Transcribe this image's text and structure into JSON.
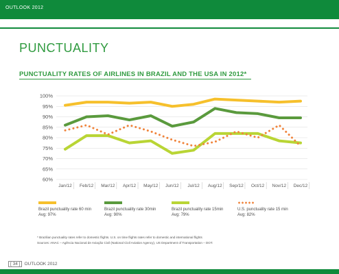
{
  "header": {
    "label": "OUTLOOK 2012"
  },
  "section_title": "PUNCTUALITY",
  "chart_data": {
    "type": "line",
    "title": "PUNCTUALITY RATES OF AIRLINES IN BRAZIL AND THE USA IN 2012*",
    "xlabel": "",
    "ylabel": "",
    "categories": [
      "Jan/12",
      "Feb/12",
      "Mar/12",
      "Apr/12",
      "May/12",
      "Jun/12",
      "Jul/12",
      "Aug/12",
      "Sep/12",
      "Oct/12",
      "Nov/12",
      "Dec/12"
    ],
    "yticks": [
      "100%",
      "95%",
      "90%",
      "85%",
      "80%",
      "75%",
      "70%",
      "65%",
      "60%"
    ],
    "ylim": [
      60,
      100
    ],
    "grid": true,
    "legend_placement": "bottom",
    "series": [
      {
        "name": "Brazil punctuality rate 60 min",
        "avg": "Avg: 97%",
        "color": "#f6c02c",
        "style": "solid",
        "values": [
          95.5,
          97,
          97,
          96.5,
          97,
          95,
          96,
          98.5,
          98,
          97.5,
          97,
          97.5
        ]
      },
      {
        "name": "Brazil punctuality rate 30min",
        "avg": "Avg: 90%",
        "color": "#5a9a3d",
        "style": "solid",
        "values": [
          86,
          90,
          90.5,
          88.5,
          90.5,
          85.5,
          87.5,
          94,
          92,
          91.5,
          89.5,
          89.5
        ]
      },
      {
        "name": "Brazil punctuality rate 15min",
        "avg": "Avg: 79%",
        "color": "#b9d535",
        "style": "solid",
        "values": [
          74.5,
          81,
          81,
          77.5,
          78.5,
          72.5,
          74,
          82,
          82,
          82,
          78.5,
          77.5
        ]
      },
      {
        "name": "U.S. punctuality rate 15 min",
        "avg": "Avg: 82%",
        "color": "#f0843c",
        "style": "dotted",
        "values": [
          83.5,
          86,
          81.5,
          86,
          83,
          79,
          76,
          78,
          83,
          80,
          86,
          76
        ]
      }
    ]
  },
  "footnotes": {
    "line1": "* Brazilian punctuality rates refer to domestic flights. U.S. on time flights rates refer to domestic and international flights",
    "line2": "Sources: ANAC – Agência Nacional de Aviação Civil (National Civil Aviation Agency), US Department of Transportation – DOT."
  },
  "footer": {
    "page_number": "34",
    "label": "OUTLOOK 2012"
  }
}
